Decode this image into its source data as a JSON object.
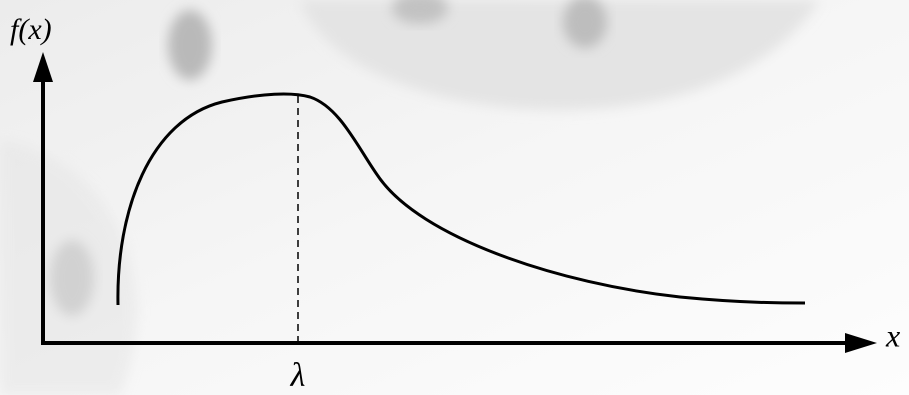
{
  "axes": {
    "y_label": "f(x)",
    "x_label": "x"
  },
  "marker": {
    "label": "λ"
  }
}
